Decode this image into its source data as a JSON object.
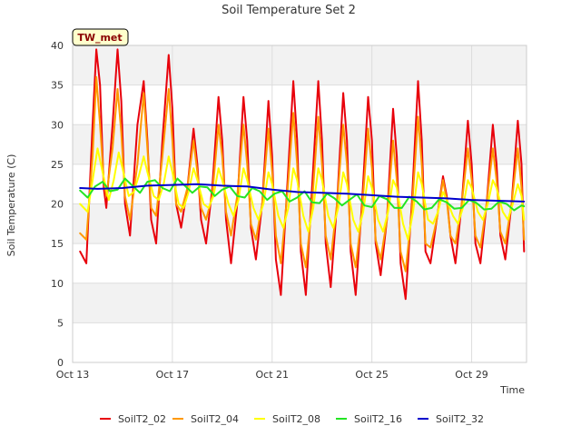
{
  "chart_data": {
    "type": "line",
    "title": "Soil Temperature Set 2",
    "xlabel": "Time",
    "ylabel": "Soil Temperature (C)",
    "station_tag": "TW_met",
    "x_unit": "days since Oct 13",
    "xlim": [
      0,
      18.2
    ],
    "ylim": [
      0,
      40
    ],
    "x_ticks": [
      {
        "value": 0,
        "label": "Oct 13"
      },
      {
        "value": 4,
        "label": "Oct 17"
      },
      {
        "value": 8,
        "label": "Oct 21"
      },
      {
        "value": 12,
        "label": "Oct 25"
      },
      {
        "value": 16,
        "label": "Oct 29"
      }
    ],
    "y_ticks": [
      0,
      5,
      10,
      15,
      20,
      25,
      30,
      35,
      40
    ],
    "grid": true,
    "legend_position": "bottom",
    "series": [
      {
        "name": "SoilT2_02",
        "color": "#e8000b",
        "x": [
          0.3,
          0.55,
          0.8,
          0.95,
          1.1,
          1.25,
          1.35,
          1.6,
          1.8,
          1.95,
          2.1,
          2.3,
          2.6,
          2.85,
          3.0,
          3.15,
          3.35,
          3.6,
          3.85,
          4.0,
          4.15,
          4.35,
          4.6,
          4.85,
          5.0,
          5.15,
          5.35,
          5.6,
          5.85,
          6.0,
          6.15,
          6.35,
          6.6,
          6.85,
          7.0,
          7.15,
          7.35,
          7.6,
          7.85,
          8.0,
          8.15,
          8.35,
          8.6,
          8.85,
          9.0,
          9.15,
          9.35,
          9.6,
          9.85,
          10.0,
          10.15,
          10.35,
          10.6,
          10.85,
          11.0,
          11.15,
          11.35,
          11.6,
          11.85,
          12.0,
          12.15,
          12.35,
          12.6,
          12.85,
          13.0,
          13.15,
          13.35,
          13.6,
          13.85,
          14.0,
          14.15,
          14.35,
          14.6,
          14.85,
          15.0,
          15.15,
          15.35,
          15.6,
          15.85,
          16.0,
          16.15,
          16.35,
          16.6,
          16.85,
          17.0,
          17.15,
          17.35,
          17.6,
          17.85,
          18.0,
          18.1
        ],
        "values": [
          14.0,
          12.5,
          30.0,
          39.5,
          35.0,
          22.0,
          19.5,
          30.0,
          39.5,
          33.0,
          20.0,
          16.0,
          30.0,
          35.5,
          28.0,
          18.0,
          15.0,
          28.0,
          38.8,
          32.0,
          20.0,
          17.0,
          22.0,
          29.5,
          25.0,
          18.0,
          15.0,
          22.0,
          33.5,
          28.0,
          18.0,
          12.5,
          20.0,
          33.5,
          28.0,
          17.0,
          13.0,
          20.0,
          33.0,
          26.0,
          13.0,
          8.5,
          22.0,
          35.5,
          28.0,
          14.0,
          8.5,
          22.0,
          35.5,
          28.0,
          15.0,
          9.5,
          20.0,
          34.0,
          28.0,
          14.0,
          8.5,
          20.0,
          33.5,
          28.0,
          15.0,
          11.0,
          18.0,
          32.0,
          26.0,
          12.5,
          8.0,
          20.0,
          35.5,
          28.0,
          14.0,
          12.5,
          18.0,
          23.5,
          21.0,
          16.0,
          12.5,
          20.0,
          30.5,
          25.0,
          15.0,
          12.5,
          20.0,
          30.0,
          25.0,
          16.0,
          13.0,
          20.0,
          30.5,
          25.0,
          14.0
        ]
      },
      {
        "name": "SoilT2_04",
        "color": "#ff9900",
        "x": [
          0.3,
          0.55,
          0.8,
          0.95,
          1.1,
          1.25,
          1.35,
          1.6,
          1.8,
          1.95,
          2.1,
          2.3,
          2.6,
          2.85,
          3.0,
          3.15,
          3.35,
          3.6,
          3.85,
          4.0,
          4.15,
          4.35,
          4.6,
          4.85,
          5.0,
          5.15,
          5.35,
          5.6,
          5.85,
          6.0,
          6.15,
          6.35,
          6.6,
          6.85,
          7.0,
          7.15,
          7.35,
          7.6,
          7.85,
          8.0,
          8.15,
          8.35,
          8.6,
          8.85,
          9.0,
          9.15,
          9.35,
          9.6,
          9.85,
          10.0,
          10.15,
          10.35,
          10.6,
          10.85,
          11.0,
          11.15,
          11.35,
          11.6,
          11.85,
          12.0,
          12.15,
          12.35,
          12.6,
          12.85,
          13.0,
          13.15,
          13.35,
          13.6,
          13.85,
          14.0,
          14.15,
          14.35,
          14.6,
          14.85,
          15.0,
          15.15,
          15.35,
          15.6,
          15.85,
          16.0,
          16.15,
          16.35,
          16.6,
          16.85,
          17.0,
          17.15,
          17.35,
          17.6,
          17.85,
          18.0,
          18.1
        ],
        "values": [
          16.3,
          15.5,
          26.0,
          36.0,
          30.0,
          23.0,
          21.0,
          27.0,
          34.5,
          29.0,
          21.0,
          18.0,
          25.0,
          34.0,
          27.0,
          19.5,
          18.5,
          26.0,
          34.5,
          28.0,
          20.0,
          19.0,
          22.0,
          28.0,
          24.0,
          19.5,
          18.0,
          21.0,
          30.0,
          26.0,
          19.0,
          16.0,
          21.0,
          30.0,
          25.0,
          17.5,
          15.5,
          20.0,
          29.5,
          24.0,
          16.0,
          12.5,
          21.0,
          31.5,
          25.0,
          15.0,
          12.0,
          20.0,
          31.0,
          25.0,
          16.0,
          13.0,
          20.0,
          30.0,
          25.0,
          15.0,
          12.0,
          19.0,
          29.5,
          24.5,
          15.5,
          13.0,
          18.0,
          28.0,
          23.0,
          14.0,
          11.5,
          19.0,
          31.0,
          25.0,
          15.0,
          14.5,
          18.0,
          23.0,
          20.5,
          16.0,
          15.0,
          20.0,
          27.0,
          23.0,
          16.0,
          14.5,
          20.0,
          27.0,
          23.0,
          16.5,
          15.0,
          20.0,
          27.0,
          22.0,
          15.5
        ]
      },
      {
        "name": "SoilT2_08",
        "color": "#ffff00",
        "x": [
          0.3,
          0.6,
          0.8,
          1.0,
          1.2,
          1.45,
          1.65,
          1.85,
          2.0,
          2.25,
          2.45,
          2.65,
          2.85,
          3.0,
          3.25,
          3.45,
          3.65,
          3.85,
          4.0,
          4.25,
          4.45,
          4.65,
          4.85,
          5.0,
          5.25,
          5.45,
          5.65,
          5.85,
          6.0,
          6.25,
          6.45,
          6.65,
          6.85,
          7.0,
          7.25,
          7.45,
          7.65,
          7.85,
          8.0,
          8.25,
          8.45,
          8.65,
          8.85,
          9.0,
          9.25,
          9.45,
          9.65,
          9.85,
          10.0,
          10.25,
          10.45,
          10.65,
          10.85,
          11.0,
          11.25,
          11.45,
          11.65,
          11.85,
          12.0,
          12.25,
          12.45,
          12.65,
          12.85,
          13.0,
          13.25,
          13.45,
          13.65,
          13.85,
          14.0,
          14.25,
          14.45,
          14.65,
          14.85,
          15.0,
          15.25,
          15.45,
          15.65,
          15.85,
          16.0,
          16.25,
          16.45,
          16.65,
          16.85,
          17.0,
          17.25,
          17.45,
          17.65,
          17.85,
          18.0,
          18.1
        ],
        "values": [
          20.0,
          19.0,
          23.0,
          27.0,
          24.0,
          20.5,
          23.0,
          26.5,
          24.5,
          21.0,
          21.5,
          23.5,
          26.0,
          24.0,
          21.0,
          20.5,
          22.5,
          26.0,
          24.0,
          20.0,
          19.5,
          21.5,
          24.5,
          23.0,
          20.0,
          19.5,
          21.0,
          24.5,
          23.0,
          20.0,
          18.5,
          20.5,
          24.5,
          23.0,
          19.5,
          18.0,
          20.0,
          24.0,
          22.5,
          18.5,
          17.0,
          19.5,
          24.5,
          23.0,
          18.5,
          16.5,
          19.5,
          24.5,
          23.0,
          18.5,
          17.0,
          19.5,
          24.0,
          22.5,
          18.0,
          16.5,
          19.0,
          23.5,
          22.0,
          18.0,
          16.5,
          19.0,
          23.0,
          22.0,
          17.5,
          15.5,
          19.0,
          24.0,
          22.5,
          18.0,
          17.5,
          19.0,
          21.5,
          20.5,
          18.5,
          17.5,
          19.5,
          23.0,
          22.0,
          19.0,
          18.0,
          20.0,
          23.0,
          22.0,
          19.0,
          18.0,
          20.0,
          22.5,
          21.0,
          18.0
        ]
      },
      {
        "name": "SoilT2_16",
        "color": "#23e523",
        "x": [
          0.3,
          0.6,
          0.9,
          1.2,
          1.5,
          1.8,
          2.1,
          2.4,
          2.7,
          3.0,
          3.3,
          3.6,
          3.9,
          4.2,
          4.5,
          4.8,
          5.1,
          5.4,
          5.7,
          6.0,
          6.3,
          6.6,
          6.9,
          7.2,
          7.5,
          7.8,
          8.1,
          8.4,
          8.7,
          9.0,
          9.3,
          9.6,
          9.9,
          10.2,
          10.5,
          10.8,
          11.1,
          11.4,
          11.7,
          12.0,
          12.3,
          12.6,
          12.9,
          13.2,
          13.5,
          13.8,
          14.1,
          14.4,
          14.7,
          15.0,
          15.3,
          15.6,
          15.9,
          16.2,
          16.5,
          16.8,
          17.1,
          17.4,
          17.7,
          18.0,
          18.1
        ],
        "values": [
          21.7,
          20.8,
          22.2,
          22.8,
          21.6,
          21.8,
          23.2,
          22.3,
          21.4,
          22.8,
          23.0,
          22.0,
          21.6,
          23.2,
          22.3,
          21.4,
          22.2,
          22.1,
          21.0,
          21.8,
          22.2,
          21.0,
          20.8,
          22.0,
          21.6,
          20.5,
          21.3,
          21.6,
          20.3,
          20.8,
          21.6,
          20.2,
          20.1,
          21.3,
          20.7,
          19.8,
          20.5,
          21.2,
          19.8,
          19.6,
          21.0,
          20.6,
          19.5,
          19.5,
          20.9,
          20.3,
          19.3,
          19.5,
          20.6,
          20.2,
          19.4,
          19.5,
          20.5,
          20.1,
          19.3,
          19.4,
          20.3,
          20.0,
          19.2,
          19.8,
          19.7
        ]
      },
      {
        "name": "SoilT2_32",
        "color": "#0000cc",
        "x": [
          0.3,
          1.0,
          2.0,
          3.0,
          4.0,
          5.0,
          6.0,
          7.0,
          8.0,
          9.0,
          10.0,
          11.0,
          12.0,
          13.0,
          14.0,
          15.0,
          16.0,
          17.0,
          18.1
        ],
        "values": [
          22.0,
          21.9,
          22.0,
          22.3,
          22.4,
          22.5,
          22.3,
          22.2,
          21.8,
          21.5,
          21.4,
          21.3,
          21.1,
          20.9,
          20.8,
          20.7,
          20.5,
          20.4,
          20.3
        ]
      }
    ]
  }
}
